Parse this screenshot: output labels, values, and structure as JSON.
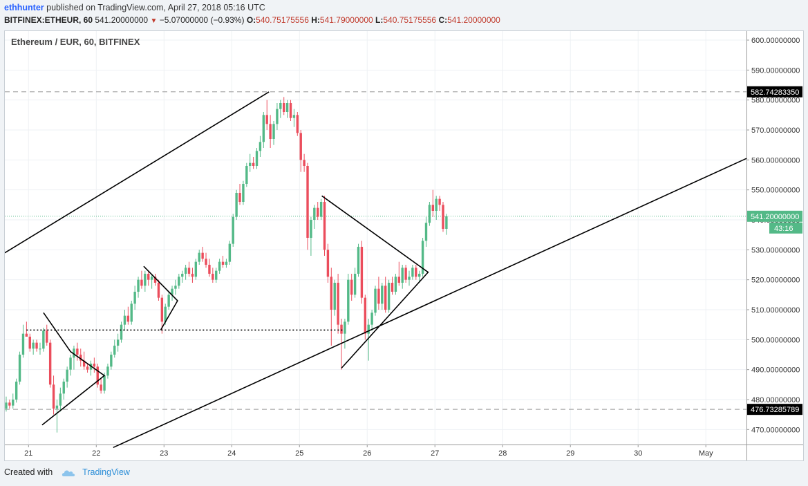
{
  "header": {
    "author": "ethhunter",
    "published_text": "published on TradingView.com, April 27, 2018 05:16 UTC",
    "symbol": "BITFINEX:ETHEUR, 60",
    "price": "541.20000000",
    "change": "−5.07000000 (−0.93%)",
    "o_label": "O:",
    "o_value": "540.75175556",
    "h_label": "H:",
    "h_value": "541.79000000",
    "l_label": "L:",
    "l_value": "540.75175556",
    "c_label": "C:",
    "c_value": "541.20000000"
  },
  "footer": {
    "created_with": "Created with",
    "brand": "TradingView"
  },
  "colors": {
    "up": "#53b987",
    "down": "#eb4d5c",
    "price_line": "#53b987",
    "drawing": "#000000",
    "grid": "#eef1f4",
    "dashed": "#aaaaaa"
  },
  "chart_data": {
    "type": "candlestick",
    "title": "Ethereum / EUR, 60, BITFINEX",
    "x_ticks": [
      "21",
      "22",
      "23",
      "24",
      "25",
      "26",
      "27",
      "28",
      "29",
      "30",
      "May"
    ],
    "y_ticks": [
      "470.00000000",
      "480.00000000",
      "490.00000000",
      "500.00000000",
      "510.00000000",
      "520.00000000",
      "530.00000000",
      "540.00000000",
      "550.00000000",
      "560.00000000",
      "570.00000000",
      "580.00000000",
      "590.00000000",
      "600.00000000"
    ],
    "ylim": [
      465,
      603
    ],
    "xlim": [
      20.65,
      31.6
    ],
    "last_price": {
      "value": 541.2,
      "label": "541.20000000",
      "countdown": "43:16"
    },
    "horizontal_levels": [
      {
        "value": 582.7428335,
        "label": "582.74283350",
        "style": "dashed"
      },
      {
        "value": 476.73285789,
        "label": "476.73285789",
        "style": "dashed"
      }
    ],
    "dotted_level": {
      "value": 503.2,
      "from_x": 20.97,
      "to_x": 25.65
    },
    "trend_lines": [
      {
        "from": [
          20.65,
          529.0
        ],
        "to": [
          24.55,
          582.7
        ]
      },
      {
        "from": [
          22.25,
          464.0
        ],
        "to": [
          31.6,
          560.5
        ]
      }
    ],
    "patterns": [
      {
        "points": [
          [
            21.22,
            509.0
          ],
          [
            21.62,
            496.0
          ],
          [
            22.12,
            488.0
          ],
          [
            21.2,
            471.5
          ]
        ]
      },
      {
        "points": [
          [
            22.7,
            524.5
          ],
          [
            23.2,
            513.0
          ],
          [
            22.95,
            503.2
          ]
        ]
      },
      {
        "points": [
          [
            25.33,
            548.0
          ],
          [
            26.9,
            522.5
          ],
          [
            25.62,
            490.5
          ]
        ]
      }
    ],
    "candles": [
      [
        20.67,
        477,
        481,
        476,
        479
      ],
      [
        20.72,
        479,
        480,
        477,
        478
      ],
      [
        20.77,
        478,
        482,
        477,
        480
      ],
      [
        20.82,
        480,
        487,
        479,
        486
      ],
      [
        20.87,
        486,
        496,
        485,
        495
      ],
      [
        20.92,
        495,
        505,
        494,
        502
      ],
      [
        20.97,
        502,
        506,
        501,
        501
      ],
      [
        21.02,
        501,
        502,
        496,
        497
      ],
      [
        21.07,
        497,
        500,
        495,
        499
      ],
      [
        21.12,
        499,
        500,
        496,
        497
      ],
      [
        21.17,
        497,
        499,
        495,
        497
      ],
      [
        21.22,
        497,
        504,
        496,
        503
      ],
      [
        21.27,
        503,
        505,
        498,
        499
      ],
      [
        21.32,
        499,
        500,
        484,
        485
      ],
      [
        21.37,
        485,
        488,
        475,
        477
      ],
      [
        21.42,
        477,
        480,
        469,
        478
      ],
      [
        21.47,
        478,
        484,
        476,
        482
      ],
      [
        21.52,
        482,
        487,
        480,
        486
      ],
      [
        21.57,
        486,
        491,
        484,
        490
      ],
      [
        21.62,
        490,
        495,
        488,
        494
      ],
      [
        21.67,
        494,
        498,
        490,
        497
      ],
      [
        21.72,
        497,
        499,
        493,
        495
      ],
      [
        21.77,
        495,
        497,
        491,
        493
      ],
      [
        21.82,
        493,
        496,
        490,
        491
      ],
      [
        21.87,
        491,
        492,
        489,
        490
      ],
      [
        21.92,
        490,
        493,
        488,
        492
      ],
      [
        21.97,
        492,
        494,
        489,
        491
      ],
      [
        22.02,
        491,
        492,
        484,
        485
      ],
      [
        22.07,
        485,
        487,
        482,
        483
      ],
      [
        22.12,
        483,
        489,
        482,
        488
      ],
      [
        22.17,
        488,
        492,
        487,
        491
      ],
      [
        22.22,
        491,
        496,
        490,
        495
      ],
      [
        22.27,
        495,
        500,
        494,
        498
      ],
      [
        22.32,
        498,
        502,
        496,
        500
      ],
      [
        22.37,
        500,
        506,
        499,
        505
      ],
      [
        22.42,
        505,
        510,
        503,
        508
      ],
      [
        22.47,
        508,
        511,
        505,
        506
      ],
      [
        22.52,
        506,
        513,
        505,
        512
      ],
      [
        22.57,
        512,
        518,
        510,
        516
      ],
      [
        22.62,
        516,
        521,
        514,
        520
      ],
      [
        22.67,
        520,
        523,
        517,
        518
      ],
      [
        22.72,
        518,
        523,
        516,
        522
      ],
      [
        22.77,
        522,
        523,
        518,
        520
      ],
      [
        22.82,
        520,
        522,
        517,
        521
      ],
      [
        22.87,
        521,
        522,
        518,
        519
      ],
      [
        22.92,
        519,
        520,
        513,
        514
      ],
      [
        22.97,
        514,
        515,
        502,
        506
      ],
      [
        23.02,
        506,
        512,
        505,
        511
      ],
      [
        23.07,
        511,
        516,
        510,
        515
      ],
      [
        23.12,
        515,
        518,
        513,
        517
      ],
      [
        23.17,
        517,
        520,
        515,
        518
      ],
      [
        23.22,
        518,
        522,
        517,
        521
      ],
      [
        23.27,
        521,
        523,
        519,
        522
      ],
      [
        23.32,
        522,
        525,
        520,
        524
      ],
      [
        23.37,
        524,
        526,
        521,
        522
      ],
      [
        23.42,
        522,
        524,
        519,
        521
      ],
      [
        23.47,
        521,
        527,
        520,
        526
      ],
      [
        23.52,
        526,
        530,
        525,
        529
      ],
      [
        23.57,
        529,
        531,
        526,
        527
      ],
      [
        23.62,
        527,
        529,
        524,
        525
      ],
      [
        23.67,
        525,
        527,
        521,
        522
      ],
      [
        23.72,
        522,
        524,
        519,
        520
      ],
      [
        23.77,
        520,
        524,
        519,
        523
      ],
      [
        23.82,
        523,
        527,
        522,
        526
      ],
      [
        23.87,
        526,
        528,
        524,
        525
      ],
      [
        23.92,
        525,
        527,
        524,
        526
      ],
      [
        23.97,
        526,
        533,
        525,
        532
      ],
      [
        24.02,
        532,
        542,
        531,
        541
      ],
      [
        24.07,
        541,
        550,
        540,
        549
      ],
      [
        24.12,
        549,
        552,
        545,
        546
      ],
      [
        24.17,
        546,
        553,
        545,
        552
      ],
      [
        24.22,
        552,
        559,
        551,
        558
      ],
      [
        24.27,
        558,
        562,
        556,
        559
      ],
      [
        24.32,
        559,
        561,
        557,
        558
      ],
      [
        24.37,
        558,
        564,
        557,
        563
      ],
      [
        24.42,
        563,
        568,
        561,
        566
      ],
      [
        24.47,
        566,
        576,
        564,
        575
      ],
      [
        24.52,
        575,
        580,
        570,
        572
      ],
      [
        24.57,
        572,
        575,
        564,
        567
      ],
      [
        24.62,
        567,
        573,
        565,
        572
      ],
      [
        24.67,
        572,
        579,
        570,
        577
      ],
      [
        24.72,
        577,
        580,
        574,
        579
      ],
      [
        24.77,
        579,
        581,
        575,
        576
      ],
      [
        24.82,
        576,
        580,
        574,
        579
      ],
      [
        24.87,
        579,
        580,
        573,
        574
      ],
      [
        24.92,
        574,
        577,
        571,
        575
      ],
      [
        24.97,
        575,
        576,
        568,
        569
      ],
      [
        25.02,
        569,
        570,
        556,
        560
      ],
      [
        25.07,
        560,
        562,
        556,
        558
      ],
      [
        25.12,
        558,
        559,
        530,
        534
      ],
      [
        25.17,
        534,
        541,
        528,
        540
      ],
      [
        25.22,
        540,
        545,
        537,
        544
      ],
      [
        25.27,
        544,
        546,
        540,
        541
      ],
      [
        25.32,
        541,
        547,
        540,
        546
      ],
      [
        25.37,
        546,
        548,
        528,
        530
      ],
      [
        25.42,
        530,
        532,
        519,
        521
      ],
      [
        25.47,
        521,
        524,
        498,
        510
      ],
      [
        25.52,
        510,
        520,
        508,
        519
      ],
      [
        25.57,
        519,
        522,
        502,
        505
      ],
      [
        25.62,
        505,
        507,
        490,
        502
      ],
      [
        25.67,
        502,
        507,
        497,
        506
      ],
      [
        25.72,
        506,
        522,
        505,
        520
      ],
      [
        25.77,
        520,
        522,
        513,
        515
      ],
      [
        25.82,
        515,
        524,
        514,
        522
      ],
      [
        25.87,
        522,
        532,
        521,
        531
      ],
      [
        25.92,
        531,
        533,
        512,
        514
      ],
      [
        25.97,
        514,
        515,
        500,
        502
      ],
      [
        26.02,
        502,
        507,
        493,
        505
      ],
      [
        26.07,
        505,
        510,
        503,
        509
      ],
      [
        26.12,
        509,
        518,
        508,
        517
      ],
      [
        26.17,
        517,
        521,
        510,
        512
      ],
      [
        26.22,
        512,
        519,
        510,
        518
      ],
      [
        26.27,
        518,
        521,
        509,
        510
      ],
      [
        26.32,
        510,
        520,
        509,
        519
      ],
      [
        26.37,
        519,
        521,
        515,
        516
      ],
      [
        26.42,
        516,
        522,
        515,
        521
      ],
      [
        26.47,
        521,
        526,
        518,
        519
      ],
      [
        26.52,
        519,
        525,
        517,
        524
      ],
      [
        26.57,
        524,
        525,
        519,
        520
      ],
      [
        26.62,
        520,
        523,
        518,
        521
      ],
      [
        26.67,
        521,
        525,
        520,
        524
      ],
      [
        26.72,
        524,
        525,
        520,
        521
      ],
      [
        26.77,
        521,
        523,
        519,
        522
      ],
      [
        26.82,
        522,
        534,
        521,
        533
      ],
      [
        26.87,
        533,
        541,
        531,
        539
      ],
      [
        26.92,
        539,
        546,
        538,
        545
      ],
      [
        26.97,
        545,
        550,
        541,
        543
      ],
      [
        27.02,
        543,
        548,
        540,
        547
      ],
      [
        27.07,
        547,
        548,
        543,
        545
      ],
      [
        27.12,
        545,
        546,
        536,
        537
      ],
      [
        27.17,
        537,
        542,
        535,
        541.2
      ]
    ]
  }
}
